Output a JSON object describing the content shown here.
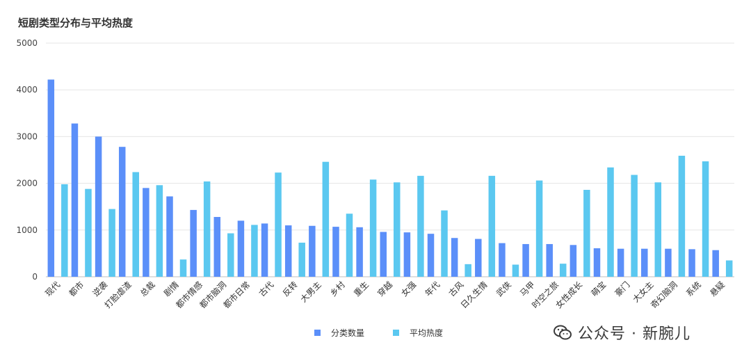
{
  "title": "短剧类型分布与平均热度",
  "watermark": {
    "account": "公众号 · 新腕儿"
  },
  "chart_data": {
    "type": "bar",
    "title": "短剧类型分布与平均热度",
    "xlabel": "",
    "ylabel": "",
    "ylim": [
      0,
      5000
    ],
    "yticks": [
      0,
      1000,
      2000,
      3000,
      4000,
      5000
    ],
    "grid": true,
    "legend_position": "bottom",
    "categories": [
      "现代",
      "都市",
      "逆袭",
      "打脸虐渣",
      "总裁",
      "剧情",
      "都市情感",
      "都市脑洞",
      "都市日常",
      "古代",
      "反转",
      "大男主",
      "乡村",
      "重生",
      "穿越",
      "女强",
      "年代",
      "古风",
      "日久生情",
      "武侠",
      "马甲",
      "时空之旅",
      "女性成长",
      "萌宝",
      "豪门",
      "大女主",
      "奇幻脑洞",
      "系统",
      "悬疑"
    ],
    "series": [
      {
        "name": "分类数量",
        "color": "#5b8ff9",
        "values": [
          4220,
          3280,
          3000,
          2780,
          1900,
          1720,
          1430,
          1280,
          1200,
          1140,
          1100,
          1090,
          1070,
          1060,
          960,
          950,
          920,
          830,
          810,
          720,
          700,
          700,
          680,
          610,
          600,
          600,
          600,
          590,
          570
        ]
      },
      {
        "name": "平均热度",
        "color": "#5bc8f0",
        "values": [
          1980,
          1880,
          1450,
          2240,
          1960,
          370,
          2040,
          930,
          1110,
          2230,
          730,
          2460,
          1350,
          2080,
          2020,
          2160,
          1420,
          270,
          2160,
          260,
          2060,
          280,
          1860,
          2340,
          2180,
          2020,
          2590,
          2470,
          350
        ]
      }
    ]
  }
}
